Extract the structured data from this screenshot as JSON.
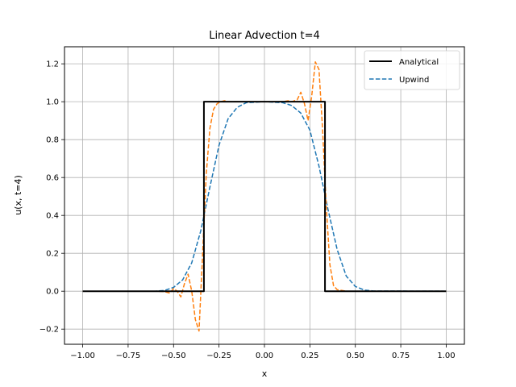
{
  "chart_data": {
    "type": "line",
    "title": "Linear Advection t=4",
    "xlabel": "x",
    "ylabel": "u(x, t=4)",
    "xlim": [
      -1.1,
      1.1
    ],
    "ylim": [
      -0.28,
      1.29
    ],
    "xticks": [
      -1.0,
      -0.75,
      -0.5,
      -0.25,
      0.0,
      0.25,
      0.5,
      0.75,
      1.0
    ],
    "xtick_labels": [
      "−1.00",
      "−0.75",
      "−0.50",
      "−0.25",
      "0.00",
      "0.25",
      "0.50",
      "0.75",
      "1.00"
    ],
    "yticks": [
      -0.2,
      0.0,
      0.2,
      0.4,
      0.6,
      0.8,
      1.0,
      1.2
    ],
    "ytick_labels": [
      "−0.2",
      "0.0",
      "0.2",
      "0.4",
      "0.6",
      "0.8",
      "1.0",
      "1.2"
    ],
    "grid": true,
    "legend_position": "top-right",
    "series": [
      {
        "name": "Analytical",
        "color": "#000000",
        "style": "solid",
        "x": [
          -1.0,
          -0.333,
          -0.333,
          0.333,
          0.333,
          1.0
        ],
        "y": [
          0.0,
          0.0,
          1.0,
          1.0,
          0.0,
          0.0
        ]
      },
      {
        "name": "Upwind",
        "color": "#1f77b4",
        "style": "dashed",
        "x": [
          -1.0,
          -0.6,
          -0.55,
          -0.5,
          -0.45,
          -0.4,
          -0.35,
          -0.3,
          -0.25,
          -0.2,
          -0.15,
          -0.1,
          0.0,
          0.1,
          0.15,
          0.2,
          0.25,
          0.3,
          0.35,
          0.4,
          0.45,
          0.5,
          0.55,
          0.6,
          1.0
        ],
        "y": [
          0.0,
          0.0,
          0.004,
          0.02,
          0.06,
          0.15,
          0.32,
          0.55,
          0.77,
          0.91,
          0.97,
          0.995,
          1.0,
          0.995,
          0.98,
          0.94,
          0.85,
          0.66,
          0.43,
          0.22,
          0.08,
          0.025,
          0.006,
          0.001,
          0.0
        ]
      },
      {
        "name": "",
        "color": "#ff7f0e",
        "style": "dashed",
        "x": [
          -1.0,
          -0.6,
          -0.55,
          -0.52,
          -0.5,
          -0.48,
          -0.46,
          -0.44,
          -0.42,
          -0.4,
          -0.38,
          -0.36,
          -0.34,
          -0.32,
          -0.3,
          -0.28,
          -0.26,
          -0.24,
          -0.22,
          -0.2,
          -0.15,
          0.0,
          0.1,
          0.13,
          0.15,
          0.18,
          0.2,
          0.22,
          0.24,
          0.26,
          0.28,
          0.3,
          0.32,
          0.34,
          0.36,
          0.38,
          0.4,
          0.45,
          0.5,
          1.0
        ],
        "y": [
          0.0,
          0.0,
          -0.002,
          -0.01,
          0.015,
          0.0,
          -0.03,
          0.04,
          0.09,
          0.0,
          -0.15,
          -0.21,
          0.2,
          0.62,
          0.86,
          0.96,
          0.99,
          1.0,
          1.005,
          1.0,
          1.0,
          1.0,
          1.0,
          1.005,
          1.0,
          1.01,
          1.05,
          0.99,
          0.9,
          1.03,
          1.21,
          1.17,
          0.85,
          0.45,
          0.14,
          0.03,
          0.008,
          0.0,
          0.0,
          0.0
        ]
      }
    ]
  }
}
